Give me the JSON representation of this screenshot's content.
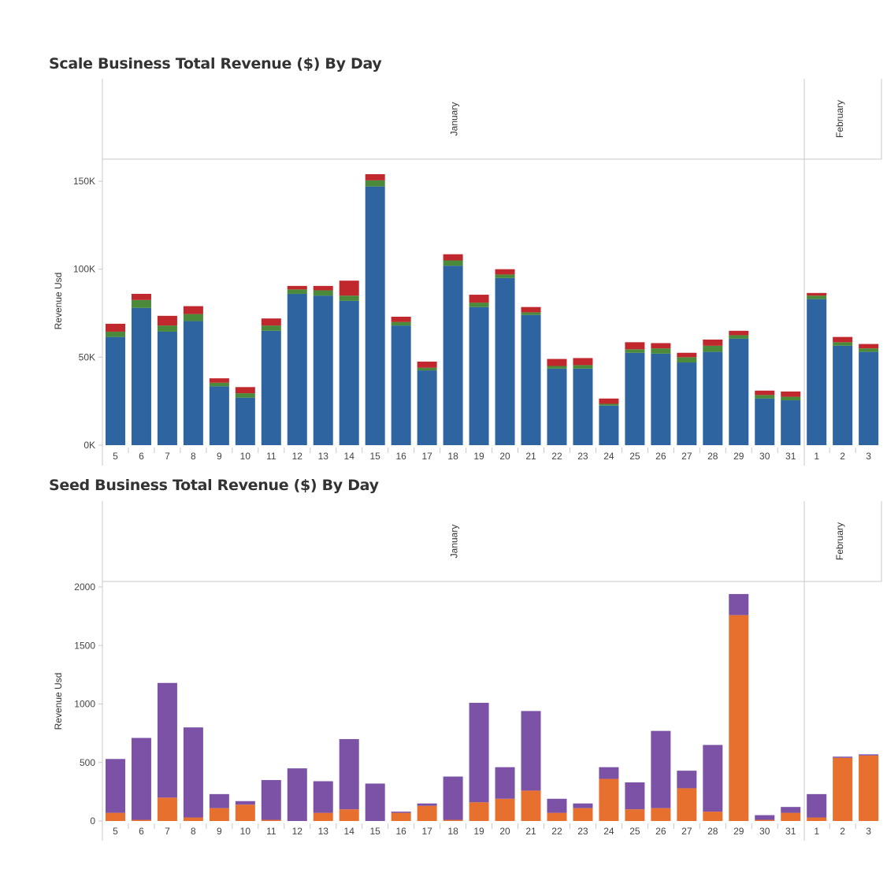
{
  "charts": [
    {
      "title": "Scale Business Total Revenue ($) By Day"
    },
    {
      "title": "Seed Business Total Revenue ($) By Day"
    }
  ],
  "colors": {
    "blue": "#2e64a0",
    "green": "#4a8a3a",
    "red": "#c0282e",
    "purple": "#7b52a6",
    "orange": "#e8702f",
    "grid": "#c8c8c8",
    "text": "#333333"
  },
  "chart_data": [
    {
      "type": "bar",
      "stacked": true,
      "title": "Scale Business Total Revenue ($) By Day",
      "ylabel": "Revenue Usd",
      "ylim": [
        0,
        160000
      ],
      "yticks": [
        0,
        50000,
        100000,
        150000
      ],
      "ytick_labels": [
        "0K",
        "50K",
        "100K",
        "150K"
      ],
      "months": [
        {
          "name": "January",
          "days": [
            "5",
            "6",
            "7",
            "8",
            "9",
            "10",
            "11",
            "12",
            "13",
            "14",
            "15",
            "16",
            "17",
            "18",
            "19",
            "20",
            "21",
            "22",
            "23",
            "24",
            "25",
            "26",
            "27",
            "28",
            "29",
            "30",
            "31"
          ]
        },
        {
          "name": "February",
          "days": [
            "1",
            "2",
            "3"
          ]
        }
      ],
      "series": [
        {
          "color": "#2e64a0",
          "values": [
            61500,
            78000,
            64500,
            70500,
            33500,
            27000,
            65000,
            86000,
            85000,
            82000,
            147000,
            68000,
            42500,
            102000,
            78500,
            95000,
            74000,
            43500,
            43500,
            22500,
            52500,
            52000,
            47000,
            53000,
            60500,
            26500,
            25500,
            83000,
            56500,
            53000
          ]
        },
        {
          "color": "#4a8a3a",
          "values": [
            3000,
            4500,
            3500,
            4000,
            2000,
            2500,
            3000,
            2500,
            3000,
            3000,
            3500,
            2000,
            1500,
            3000,
            2500,
            2000,
            1500,
            1500,
            2000,
            1000,
            2000,
            3000,
            3000,
            3500,
            2000,
            2000,
            2000,
            2000,
            2000,
            2000
          ]
        },
        {
          "color": "#c0282e",
          "values": [
            4500,
            3500,
            5500,
            4500,
            2500,
            3500,
            4000,
            2000,
            2500,
            8500,
            3500,
            3000,
            3500,
            3500,
            4500,
            3000,
            3000,
            4000,
            4000,
            3000,
            4000,
            3000,
            2500,
            3500,
            2500,
            2500,
            3000,
            1500,
            3000,
            2500
          ]
        }
      ]
    },
    {
      "type": "bar",
      "stacked": true,
      "title": "Seed Business Total Revenue ($) By Day",
      "ylabel": "Revenue Usd",
      "ylim": [
        0,
        2000
      ],
      "yticks": [
        0,
        500,
        1000,
        1500,
        2000
      ],
      "ytick_labels": [
        "0",
        "500",
        "1000",
        "1500",
        "2000"
      ],
      "months": [
        {
          "name": "January",
          "days": [
            "5",
            "6",
            "7",
            "8",
            "9",
            "10",
            "11",
            "12",
            "13",
            "14",
            "15",
            "16",
            "17",
            "18",
            "19",
            "20",
            "21",
            "22",
            "23",
            "24",
            "25",
            "26",
            "27",
            "28",
            "29",
            "30",
            "31"
          ]
        },
        {
          "name": "February",
          "days": [
            "1",
            "2",
            "3"
          ]
        }
      ],
      "series": [
        {
          "color": "#e8702f",
          "values": [
            70,
            10,
            200,
            30,
            110,
            140,
            10,
            0,
            70,
            100,
            0,
            70,
            130,
            10,
            160,
            190,
            260,
            70,
            110,
            360,
            100,
            110,
            280,
            80,
            1760,
            10,
            70,
            30,
            540,
            560
          ]
        },
        {
          "color": "#7b52a6",
          "values": [
            460,
            700,
            980,
            770,
            120,
            30,
            340,
            450,
            270,
            600,
            320,
            10,
            20,
            370,
            850,
            270,
            680,
            120,
            40,
            100,
            230,
            660,
            150,
            570,
            180,
            40,
            50,
            200,
            10,
            10
          ]
        }
      ]
    }
  ]
}
